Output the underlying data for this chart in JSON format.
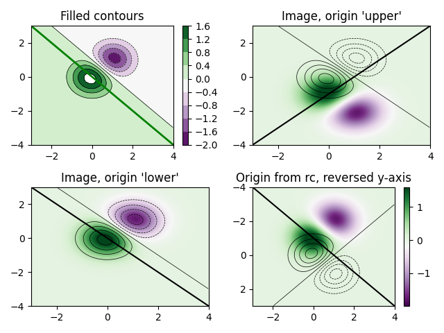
{
  "title_tl": "Filled contours",
  "title_tr": "Image, origin 'upper'",
  "title_bl": "Image, origin 'lower'",
  "title_br": "Origin from rc, reversed y-axis",
  "cmap": "PRGn",
  "colorbar_tl_ticks": [
    -2.0,
    -1.6,
    -1.2,
    -0.8,
    -0.4,
    0.0,
    0.4,
    0.8,
    1.2,
    1.6
  ],
  "colorbar_br_ticks": [
    -1,
    0,
    1
  ],
  "line_color_tl": "green",
  "line_color_others": "black",
  "figsize": [
    6.4,
    4.8
  ],
  "dpi": 100
}
